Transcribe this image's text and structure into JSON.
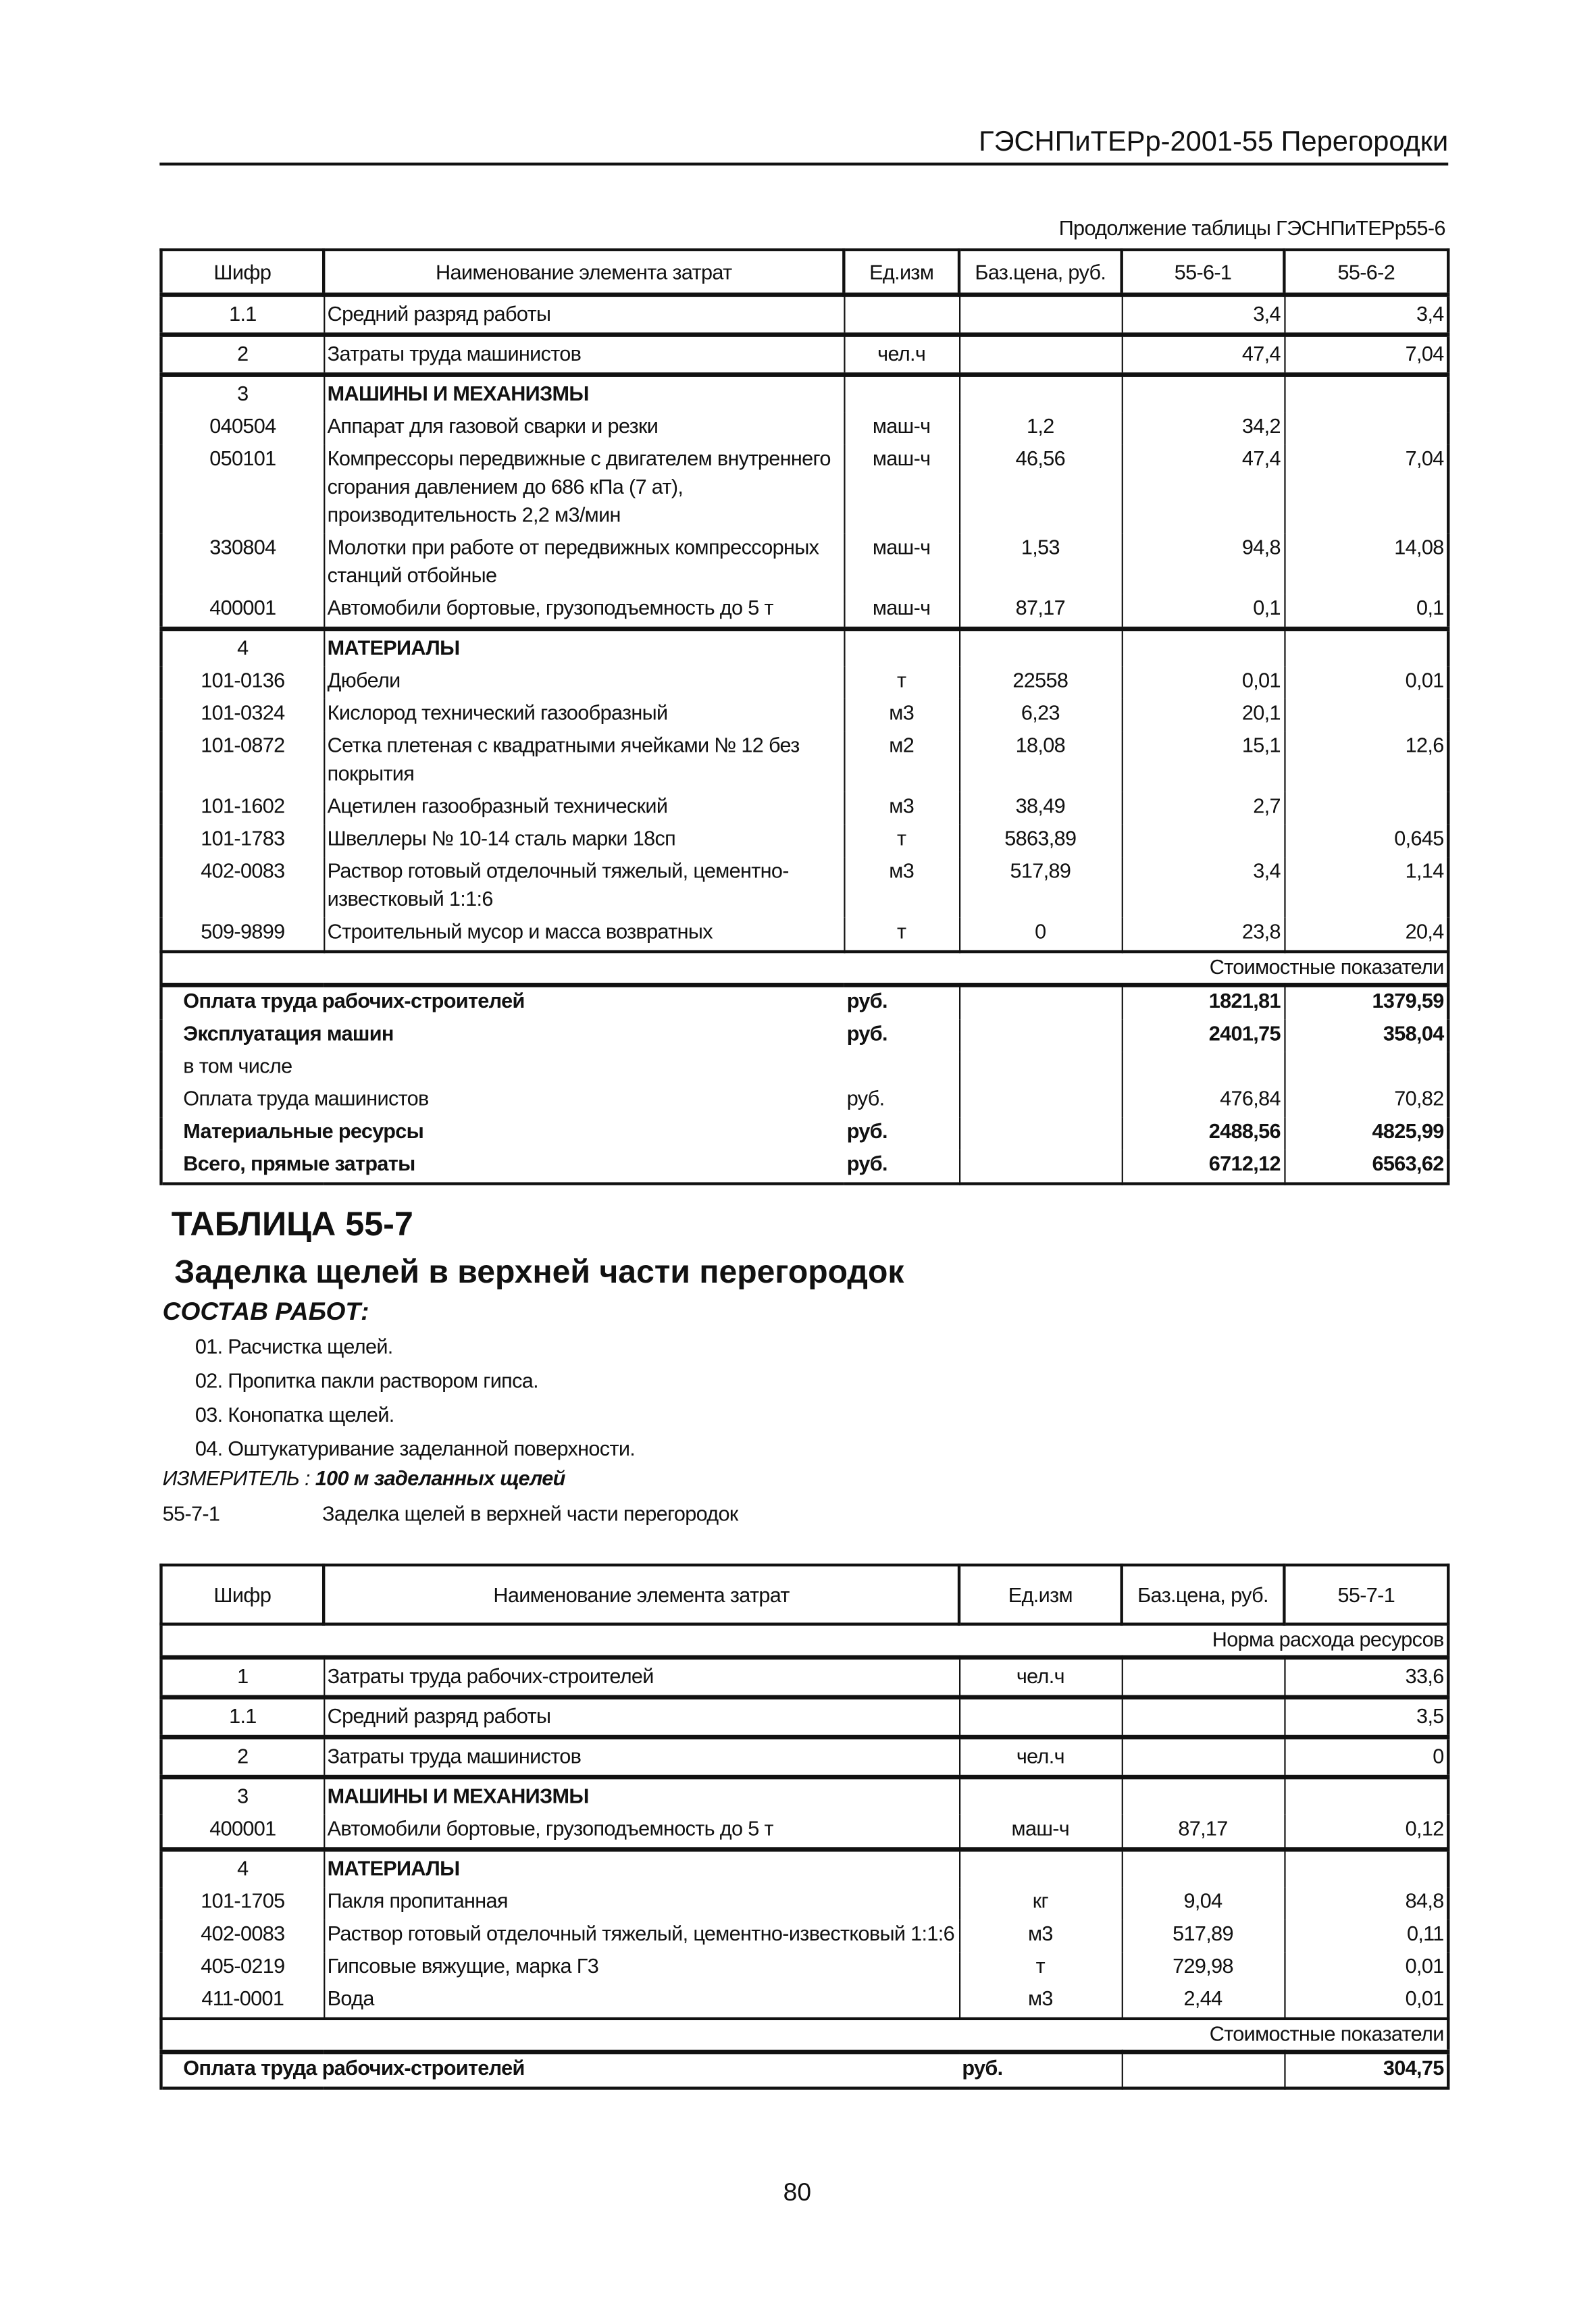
{
  "running_head": "ГЭСНПиТЕРр-2001-55 Перегородки",
  "continuation": "Продолжение таблицы ГЭСНПиТЕРр55-6",
  "table1": {
    "headers": [
      "Шифр",
      "Наименование элемента затрат",
      "Ед.изм",
      "Баз.цена, руб.",
      "55-6-1",
      "55-6-2"
    ],
    "groups": [
      [
        {
          "code": "1.1",
          "name": "Средний разряд работы",
          "unit": "",
          "price": "",
          "v1": "3,4",
          "v2": "3,4"
        }
      ],
      [
        {
          "code": "2",
          "name": "Затраты труда машинистов",
          "unit": "чел.ч",
          "price": "",
          "v1": "47,4",
          "v2": "7,04"
        }
      ],
      [
        {
          "code": "3",
          "name": "МАШИНЫ И МЕХАНИЗМЫ",
          "unit": "",
          "price": "",
          "v1": "",
          "v2": "",
          "bold": true
        },
        {
          "code": "040504",
          "name": "Аппарат для газовой сварки и резки",
          "unit": "маш-ч",
          "price": "1,2",
          "v1": "34,2",
          "v2": ""
        },
        {
          "code": "050101",
          "name": "Компрессоры передвижные с двигателем внутреннего сгорания давлением до 686 кПа (7 ат), производительность 2,2 м3/мин",
          "unit": "маш-ч",
          "price": "46,56",
          "v1": "47,4",
          "v2": "7,04"
        },
        {
          "code": "330804",
          "name": "Молотки при работе от передвижных компрессорных станций отбойные",
          "unit": "маш-ч",
          "price": "1,53",
          "v1": "94,8",
          "v2": "14,08"
        },
        {
          "code": "400001",
          "name": "Автомобили бортовые, грузоподъемность до 5 т",
          "unit": "маш-ч",
          "price": "87,17",
          "v1": "0,1",
          "v2": "0,1"
        }
      ],
      [
        {
          "code": "4",
          "name": "МАТЕРИАЛЫ",
          "unit": "",
          "price": "",
          "v1": "",
          "v2": "",
          "bold": true
        },
        {
          "code": "101-0136",
          "name": "Дюбели",
          "unit": "т",
          "price": "22558",
          "v1": "0,01",
          "v2": "0,01"
        },
        {
          "code": "101-0324",
          "name": "Кислород технический газообразный",
          "unit": "м3",
          "price": "6,23",
          "v1": "20,1",
          "v2": ""
        },
        {
          "code": "101-0872",
          "name": "Сетка плетеная с квадратными ячейками № 12 без покрытия",
          "unit": "м2",
          "price": "18,08",
          "v1": "15,1",
          "v2": "12,6"
        },
        {
          "code": "101-1602",
          "name": "Ацетилен газообразный технический",
          "unit": "м3",
          "price": "38,49",
          "v1": "2,7",
          "v2": ""
        },
        {
          "code": "101-1783",
          "name": "Швеллеры № 10-14 сталь марки 18сп",
          "unit": "т",
          "price": "5863,89",
          "v1": "",
          "v2": "0,645"
        },
        {
          "code": "402-0083",
          "name": "Раствор готовый отделочный тяжелый, цементно-известковый 1:1:6",
          "unit": "м3",
          "price": "517,89",
          "v1": "3,4",
          "v2": "1,14"
        },
        {
          "code": "509-9899",
          "name": "Строительный мусор и масса возвратных",
          "unit": "т",
          "price": "0",
          "v1": "23,8",
          "v2": "20,4"
        }
      ]
    ],
    "band": "Стоимостные показатели",
    "summary": [
      {
        "label": "Оплата труда рабочих-строителей",
        "unit": "руб.",
        "v1": "1821,81",
        "v2": "1379,59",
        "bold": true
      },
      {
        "label": "Эксплуатация машин",
        "unit": "руб.",
        "v1": "2401,75",
        "v2": "358,04",
        "bold": true
      },
      {
        "label": "в том числе",
        "unit": "",
        "v1": "",
        "v2": ""
      },
      {
        "label": "Оплата труда машинистов",
        "unit": "руб.",
        "v1": "476,84",
        "v2": "70,82"
      },
      {
        "label": "Материальные ресурсы",
        "unit": "руб.",
        "v1": "2488,56",
        "v2": "4825,99",
        "bold": true
      },
      {
        "label": "Всего, прямые затраты",
        "unit": "руб.",
        "v1": "6712,12",
        "v2": "6563,62",
        "bold": true
      }
    ]
  },
  "section": {
    "table_title": "ТАБЛИЦА 55-7",
    "title": "Заделка щелей в верхней части перегородок",
    "works_heading": "СОСТАВ РАБОТ:",
    "works": [
      "01. Расчистка щелей.",
      "02. Пропитка пакли раствором гипса.",
      "03. Конопатка щелей.",
      "04. Оштукатуривание заделанной поверхности."
    ],
    "meter_label": "ИЗМЕРИТЕЛЬ :",
    "meter_value": "100 м заделанных щелей",
    "item_code": "55-7-1",
    "item_name": "Заделка щелей в верхней части перегородок"
  },
  "table2": {
    "headers": [
      "Шифр",
      "Наименование элемента затрат",
      "Ед.изм",
      "Баз.цена, руб.",
      "55-7-1"
    ],
    "band_top": "Норма расхода ресурсов",
    "groups": [
      [
        {
          "code": "1",
          "name": "Затраты труда рабочих-строителей",
          "unit": "чел.ч",
          "price": "",
          "v1": "33,6"
        }
      ],
      [
        {
          "code": "1.1",
          "name": "Средний разряд работы",
          "unit": "",
          "price": "",
          "v1": "3,5"
        }
      ],
      [
        {
          "code": "2",
          "name": "Затраты труда машинистов",
          "unit": "чел.ч",
          "price": "",
          "v1": "0"
        }
      ],
      [
        {
          "code": "3",
          "name": "МАШИНЫ И МЕХАНИЗМЫ",
          "unit": "",
          "price": "",
          "v1": "",
          "bold": true
        },
        {
          "code": "400001",
          "name": "Автомобили бортовые, грузоподъемность до 5 т",
          "unit": "маш-ч",
          "price": "87,17",
          "v1": "0,12"
        }
      ],
      [
        {
          "code": "4",
          "name": "МАТЕРИАЛЫ",
          "unit": "",
          "price": "",
          "v1": "",
          "bold": true
        },
        {
          "code": "101-1705",
          "name": "Пакля пропитанная",
          "unit": "кг",
          "price": "9,04",
          "v1": "84,8"
        },
        {
          "code": "402-0083",
          "name": "Раствор готовый отделочный тяжелый, цементно-известковый 1:1:6",
          "unit": "м3",
          "price": "517,89",
          "v1": "0,11"
        },
        {
          "code": "405-0219",
          "name": "Гипсовые вяжущие, марка Г3",
          "unit": "т",
          "price": "729,98",
          "v1": "0,01"
        },
        {
          "code": "411-0001",
          "name": "Вода",
          "unit": "м3",
          "price": "2,44",
          "v1": "0,01"
        }
      ]
    ],
    "band": "Стоимостные показатели",
    "summary": [
      {
        "label": "Оплата труда рабочих-строителей",
        "unit": "руб.",
        "v1": "304,75",
        "bold": true
      }
    ]
  },
  "page_number": "80"
}
